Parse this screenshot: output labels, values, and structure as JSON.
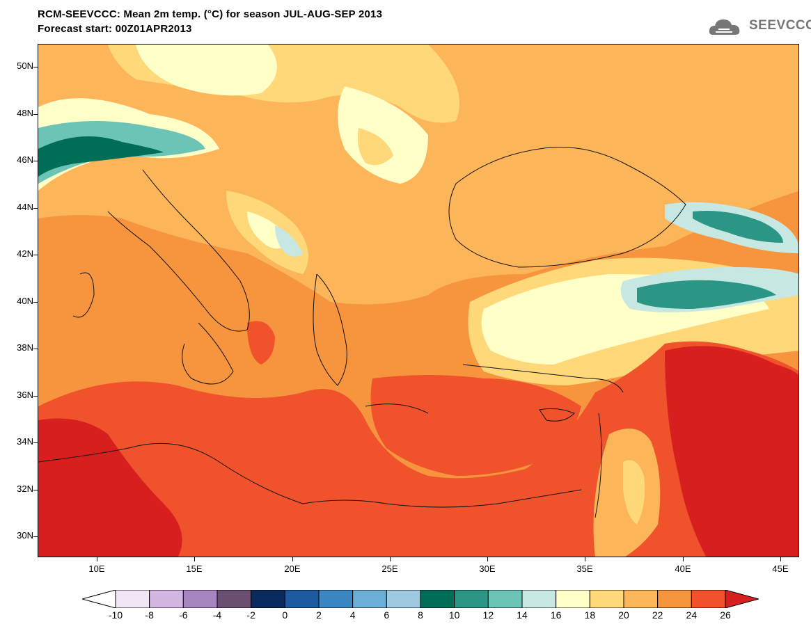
{
  "title": {
    "line1": "RCM-SEEVCCC: Mean 2m temp. (°C) for season JUL-AUG-SEP 2013",
    "line2": "Forecast start: 00Z01APR2013"
  },
  "logo": {
    "text": "SEEVCCC",
    "icon": "cloud-icon"
  },
  "map": {
    "lon_range": [
      7,
      46
    ],
    "lat_range": [
      29,
      51
    ],
    "lat_ticks": [
      "50N",
      "48N",
      "46N",
      "44N",
      "42N",
      "40N",
      "38N",
      "36N",
      "34N",
      "32N",
      "30N"
    ],
    "lon_ticks": [
      "10E",
      "15E",
      "20E",
      "25E",
      "30E",
      "35E",
      "40E",
      "45E"
    ],
    "variable": "Mean 2m temperature",
    "units": "°C"
  },
  "colorbar": {
    "labels": [
      "-10",
      "-8",
      "-6",
      "-4",
      "-2",
      "0",
      "2",
      "4",
      "6",
      "8",
      "10",
      "12",
      "14",
      "16",
      "18",
      "20",
      "22",
      "24",
      "26"
    ],
    "colors": [
      "#ffffff",
      "#f1e6f5",
      "#d4b6e2",
      "#a885c0",
      "#6a4f73",
      "#0a2a5e",
      "#1e5aa0",
      "#3b87c4",
      "#6baed6",
      "#9ecae1",
      "#006d57",
      "#2b9586",
      "#6bc4b6",
      "#c7e8e2",
      "#ffffc8",
      "#ffd87a",
      "#fdb55a",
      "#f7953f",
      "#f0522b",
      "#d81f1f"
    ]
  }
}
